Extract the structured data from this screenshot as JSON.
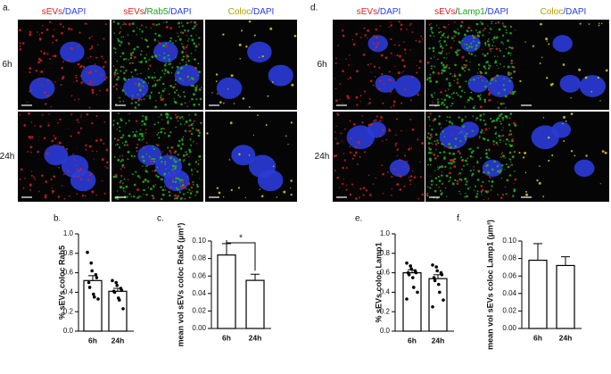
{
  "panels": [
    {
      "label": "a.",
      "rows": [
        "6h",
        "24h"
      ],
      "headers": [
        [
          {
            "text": "sEVs",
            "color": "#e02020"
          },
          {
            "text": "/DAPI",
            "color": "#2a3ee0"
          }
        ],
        [
          {
            "text": "sEVs",
            "color": "#e02020"
          },
          {
            "text": "/",
            "color": "#222222"
          },
          {
            "text": "Rab5",
            "color": "#22a022"
          },
          {
            "text": "/DAPI",
            "color": "#2a3ee0"
          }
        ],
        [
          {
            "text": "Coloc",
            "color": "#b0a000"
          },
          {
            "text": "/DAPI",
            "color": "#2a3ee0"
          }
        ]
      ]
    },
    {
      "label": "d.",
      "rows": [
        "6h",
        "24h"
      ],
      "headers": [
        [
          {
            "text": "sEVs",
            "color": "#e02020"
          },
          {
            "text": "/DAPI",
            "color": "#2a3ee0"
          }
        ],
        [
          {
            "text": "sEVs",
            "color": "#e02020"
          },
          {
            "text": "/",
            "color": "#222222"
          },
          {
            "text": "Lamp1",
            "color": "#22a022"
          },
          {
            "text": "/DAPI",
            "color": "#2a3ee0"
          }
        ],
        [
          {
            "text": "Coloc",
            "color": "#b0a000"
          },
          {
            "text": "/DAPI",
            "color": "#2a3ee0"
          }
        ]
      ]
    }
  ],
  "chart_data": [
    {
      "type": "bar",
      "label": "b.",
      "ylabel": "% sEVs coloc Rab5",
      "categories": [
        "6h",
        "24h"
      ],
      "values": [
        0.52,
        0.41
      ],
      "errors": [
        0.05,
        0.03
      ],
      "color": "#ffffff",
      "points": [
        [
          0.81,
          0.7,
          0.62,
          0.58,
          0.55,
          0.5,
          0.45,
          0.38,
          0.35,
          0.33
        ],
        [
          0.52,
          0.5,
          0.47,
          0.44,
          0.42,
          0.41,
          0.4,
          0.34,
          0.32,
          0.23
        ]
      ],
      "ylim": [
        0,
        1
      ],
      "yticks": [
        {
          "value": 0,
          "label": "0.0"
        },
        0.2,
        0.4,
        0.6,
        0.8,
        {
          "value": 1,
          "label": "1.0"
        }
      ]
    },
    {
      "type": "bar",
      "label": "c.",
      "ylabel": "mean vol sEVs coloc Rab5 (µm³)",
      "categories": [
        "6h",
        "24h"
      ],
      "values": [
        0.084,
        0.055
      ],
      "errors": [
        0.013,
        0.007
      ],
      "color": "#ffffff",
      "significance": "*",
      "ylim": [
        0,
        0.1
      ],
      "yticks": [
        {
          "value": 0,
          "label": "0.00"
        },
        {
          "value": 0.02,
          "label": "0.02"
        },
        {
          "value": 0.04,
          "label": "0.04"
        },
        {
          "value": 0.06,
          "label": "0.06"
        },
        {
          "value": 0.08,
          "label": "0.08"
        },
        {
          "value": 0.1,
          "label": "0.10"
        }
      ]
    },
    {
      "type": "bar",
      "label": "e.",
      "ylabel": "% sEVs coloc Lamp1",
      "categories": [
        "6h",
        "24h"
      ],
      "values": [
        0.6,
        0.54
      ],
      "errors": [
        0.03,
        0.04
      ],
      "color": "#ffffff",
      "points": [
        [
          0.7,
          0.67,
          0.64,
          0.62,
          0.6,
          0.6,
          0.58,
          0.55,
          0.45,
          0.4,
          0.33
        ],
        [
          0.68,
          0.66,
          0.62,
          0.6,
          0.58,
          0.55,
          0.52,
          0.48,
          0.4,
          0.32,
          0.25
        ]
      ],
      "ylim": [
        0,
        1
      ],
      "yticks": [
        {
          "value": 0,
          "label": "0.0"
        },
        0.2,
        0.4,
        0.6,
        0.8,
        {
          "value": 1,
          "label": "1.0"
        }
      ]
    },
    {
      "type": "bar",
      "label": "f.",
      "ylabel": "mean vol sEVs coloc Lamp1 (µm³)",
      "categories": [
        "6h",
        "24h"
      ],
      "values": [
        0.078,
        0.072
      ],
      "errors": [
        0.019,
        0.01
      ],
      "color": "#ffffff",
      "ylim": [
        0,
        0.1
      ],
      "yticks": [
        {
          "value": 0,
          "label": "0.00"
        },
        {
          "value": 0.02,
          "label": "0.02"
        },
        {
          "value": 0.04,
          "label": "0.04"
        },
        {
          "value": 0.06,
          "label": "0.06"
        },
        {
          "value": 0.08,
          "label": "0.08"
        },
        {
          "value": 0.1,
          "label": "0.10"
        }
      ]
    }
  ]
}
